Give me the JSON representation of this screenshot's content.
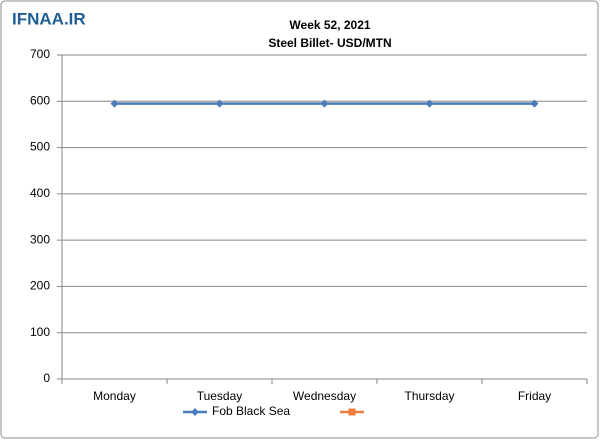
{
  "watermark": "IFNAA.IR",
  "chart_data": {
    "type": "line",
    "title": [
      "Week 52, 2021",
      "Steel Billet- USD/MTN"
    ],
    "categories": [
      "Monday",
      "Tuesday",
      "Wednesday",
      "Thursday",
      "Friday"
    ],
    "series": [
      {
        "name": "Fob Black Sea",
        "color": "#4a7ebb",
        "values": [
          595,
          595,
          595,
          595,
          595
        ]
      },
      {
        "color": "#f07f3c",
        "values": [
          null,
          null,
          null,
          null,
          null
        ]
      }
    ],
    "ylim": [
      0,
      700
    ],
    "yticks": [
      0,
      100,
      200,
      300,
      400,
      500,
      600,
      700
    ],
    "grid": true
  }
}
